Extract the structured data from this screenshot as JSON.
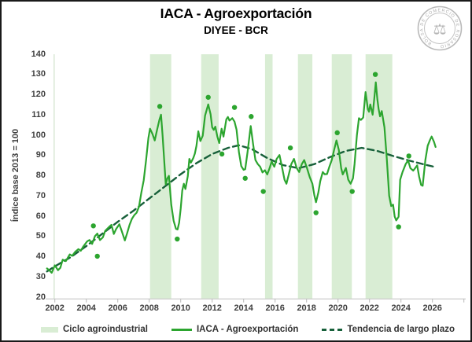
{
  "header": {
    "title": "IACA - Agroexportación",
    "subtitle": "DIYEE - BCR"
  },
  "logo": {
    "name": "Bolsa de Comercio de Rosario seal",
    "ring_text": "BOLSA DE COMERCIO DE ROSARIO",
    "emblem": "⚖"
  },
  "colors": {
    "iaca_line": "#2ca52f",
    "trend_line": "#17603a",
    "cycle_band": "#d9edd4",
    "axis": "#c9c9c9",
    "axis_text": "#3f3f3f",
    "logo_gray": "#b4b4b4"
  },
  "chart_data": {
    "type": "line",
    "title": "IACA - Agroexportación",
    "subtitle": "DIYEE - BCR",
    "xlabel": "",
    "ylabel": "Índice base 2013 = 100",
    "ylim": [
      20,
      140
    ],
    "yticks": [
      20,
      30,
      40,
      50,
      60,
      70,
      80,
      90,
      100,
      110,
      120,
      130,
      140
    ],
    "xticks": [
      2002,
      2004,
      2006,
      2008,
      2010,
      2012,
      2014,
      2016,
      2018,
      2020,
      2022,
      2024,
      2026
    ],
    "x_range": [
      2001.4,
      2028.1
    ],
    "grid": false,
    "legend_position": "bottom",
    "legend": [
      {
        "label": "Ciclo agroindustrial",
        "swatch": "band"
      },
      {
        "label": "IACA - Agroexportación",
        "swatch": "line"
      },
      {
        "label": "Tendencia de largo plazo",
        "swatch": "dashed"
      }
    ],
    "cycle_bands": [
      [
        2008.05,
        2009.4
      ],
      [
        2011.3,
        2012.41
      ],
      [
        2015.36,
        2015.84
      ],
      [
        2017.45,
        2018.37
      ],
      [
        2019.6,
        2020.88
      ],
      [
        2021.75,
        2023.45
      ]
    ],
    "iaca_series": [
      [
        2001.5,
        34.5
      ],
      [
        2001.65,
        33.5
      ],
      [
        2001.8,
        32.3
      ],
      [
        2002.0,
        36.0
      ],
      [
        2002.2,
        33.6
      ],
      [
        2002.35,
        34.8
      ],
      [
        2002.5,
        38.8
      ],
      [
        2002.7,
        38.1
      ],
      [
        2002.95,
        41.4
      ],
      [
        2003.1,
        40.7
      ],
      [
        2003.3,
        42.7
      ],
      [
        2003.5,
        44.0
      ],
      [
        2003.65,
        43.2
      ],
      [
        2003.8,
        45.2
      ],
      [
        2004.05,
        47.8
      ],
      [
        2004.2,
        48.5
      ],
      [
        2004.37,
        46.6
      ],
      [
        2004.55,
        50.4
      ],
      [
        2004.7,
        51.7
      ],
      [
        2004.87,
        48.5
      ],
      [
        2005.05,
        49.8
      ],
      [
        2005.2,
        53.0
      ],
      [
        2005.45,
        55.0
      ],
      [
        2005.6,
        56.0
      ],
      [
        2005.75,
        51.5
      ],
      [
        2005.9,
        54.0
      ],
      [
        2006.1,
        56.3
      ],
      [
        2006.25,
        53.0
      ],
      [
        2006.45,
        48.3
      ],
      [
        2006.6,
        52.0
      ],
      [
        2006.75,
        56.0
      ],
      [
        2006.9,
        59.0
      ],
      [
        2007.05,
        60.8
      ],
      [
        2007.2,
        62.0
      ],
      [
        2007.35,
        65.0
      ],
      [
        2007.5,
        72.0
      ],
      [
        2007.65,
        78.0
      ],
      [
        2007.8,
        88.0
      ],
      [
        2007.95,
        99.0
      ],
      [
        2008.05,
        103.5
      ],
      [
        2008.2,
        101.0
      ],
      [
        2008.35,
        97.7
      ],
      [
        2008.5,
        103.0
      ],
      [
        2008.65,
        108.0
      ],
      [
        2008.75,
        110.4
      ],
      [
        2008.85,
        100.0
      ],
      [
        2008.95,
        88.0
      ],
      [
        2009.05,
        76.0
      ],
      [
        2009.15,
        79.0
      ],
      [
        2009.25,
        80.2
      ],
      [
        2009.4,
        66.0
      ],
      [
        2009.55,
        58.0
      ],
      [
        2009.7,
        54.0
      ],
      [
        2009.8,
        53.7
      ],
      [
        2009.9,
        57.0
      ],
      [
        2010.0,
        64.0
      ],
      [
        2010.1,
        73.0
      ],
      [
        2010.2,
        76.3
      ],
      [
        2010.3,
        73.7
      ],
      [
        2010.45,
        80.0
      ],
      [
        2010.55,
        88.6
      ],
      [
        2010.65,
        86.7
      ],
      [
        2010.8,
        89.0
      ],
      [
        2010.9,
        91.2
      ],
      [
        2011.0,
        95.0
      ],
      [
        2011.12,
        102.2
      ],
      [
        2011.25,
        97.4
      ],
      [
        2011.4,
        100.0
      ],
      [
        2011.55,
        110.0
      ],
      [
        2011.75,
        115.5
      ],
      [
        2011.9,
        110.6
      ],
      [
        2012.0,
        104.2
      ],
      [
        2012.1,
        102.9
      ],
      [
        2012.2,
        104.5
      ],
      [
        2012.33,
        99.6
      ],
      [
        2012.45,
        96.4
      ],
      [
        2012.6,
        103.5
      ],
      [
        2012.72,
        99.6
      ],
      [
        2012.9,
        108.1
      ],
      [
        2013.0,
        109.3
      ],
      [
        2013.1,
        107.5
      ],
      [
        2013.28,
        108.7
      ],
      [
        2013.42,
        107.0
      ],
      [
        2013.55,
        103.0
      ],
      [
        2013.7,
        92.0
      ],
      [
        2013.85,
        85.0
      ],
      [
        2014.0,
        83.2
      ],
      [
        2014.1,
        83.5
      ],
      [
        2014.25,
        92.0
      ],
      [
        2014.45,
        104.8
      ],
      [
        2014.6,
        96.0
      ],
      [
        2014.75,
        88.0
      ],
      [
        2014.9,
        86.0
      ],
      [
        2015.05,
        84.7
      ],
      [
        2015.2,
        81.9
      ],
      [
        2015.35,
        83.0
      ],
      [
        2015.5,
        80.9
      ],
      [
        2015.65,
        84.0
      ],
      [
        2015.78,
        87.3
      ],
      [
        2015.95,
        84.7
      ],
      [
        2016.1,
        88.6
      ],
      [
        2016.28,
        90.5
      ],
      [
        2016.45,
        84.1
      ],
      [
        2016.6,
        78.3
      ],
      [
        2016.72,
        76.3
      ],
      [
        2016.87,
        80.9
      ],
      [
        2017.03,
        86.0
      ],
      [
        2017.2,
        88.6
      ],
      [
        2017.37,
        84.1
      ],
      [
        2017.53,
        82.1
      ],
      [
        2017.7,
        86.0
      ],
      [
        2017.85,
        88.0
      ],
      [
        2018.0,
        84.7
      ],
      [
        2018.2,
        79.6
      ],
      [
        2018.37,
        76.3
      ],
      [
        2018.5,
        70.4
      ],
      [
        2018.6,
        67.2
      ],
      [
        2018.75,
        72.0
      ],
      [
        2018.87,
        77.6
      ],
      [
        2019.03,
        82.1
      ],
      [
        2019.15,
        81.0
      ],
      [
        2019.3,
        81.1
      ],
      [
        2019.45,
        84.7
      ],
      [
        2019.6,
        88.0
      ],
      [
        2019.75,
        93.0
      ],
      [
        2019.9,
        97.7
      ],
      [
        2020.05,
        93.0
      ],
      [
        2020.2,
        84.0
      ],
      [
        2020.3,
        80.9
      ],
      [
        2020.5,
        84.1
      ],
      [
        2020.65,
        78.3
      ],
      [
        2020.8,
        76.3
      ],
      [
        2020.95,
        79.0
      ],
      [
        2021.05,
        86.0
      ],
      [
        2021.2,
        100.3
      ],
      [
        2021.33,
        108.7
      ],
      [
        2021.45,
        107.8
      ],
      [
        2021.6,
        109.0
      ],
      [
        2021.75,
        121.6
      ],
      [
        2021.9,
        113.0
      ],
      [
        2021.97,
        111.9
      ],
      [
        2022.05,
        115.5
      ],
      [
        2022.2,
        110.4
      ],
      [
        2022.3,
        118.0
      ],
      [
        2022.4,
        126.4
      ],
      [
        2022.5,
        118.0
      ],
      [
        2022.58,
        113.2
      ],
      [
        2022.67,
        109.6
      ],
      [
        2022.78,
        112.2
      ],
      [
        2022.95,
        104.2
      ],
      [
        2023.1,
        88.6
      ],
      [
        2023.25,
        70.4
      ],
      [
        2023.38,
        65.3
      ],
      [
        2023.5,
        66.0
      ],
      [
        2023.6,
        60.1
      ],
      [
        2023.7,
        58.2
      ],
      [
        2023.85,
        60.0
      ],
      [
        2023.95,
        78.3
      ],
      [
        2024.1,
        82.1
      ],
      [
        2024.3,
        86.0
      ],
      [
        2024.45,
        87.9
      ],
      [
        2024.6,
        84.0
      ],
      [
        2024.78,
        82.8
      ],
      [
        2024.9,
        84.0
      ],
      [
        2025.03,
        85.4
      ],
      [
        2025.15,
        80.0
      ],
      [
        2025.28,
        75.7
      ],
      [
        2025.38,
        75.3
      ],
      [
        2025.55,
        88.0
      ],
      [
        2025.7,
        95.1
      ],
      [
        2025.85,
        98.0
      ],
      [
        2025.95,
        99.6
      ],
      [
        2026.1,
        97.0
      ],
      [
        2026.2,
        94.5
      ]
    ],
    "trend_series": [
      [
        2001.5,
        33.0
      ],
      [
        2002,
        35.5
      ],
      [
        2003,
        40.0
      ],
      [
        2004,
        45.5
      ],
      [
        2005,
        51.5
      ],
      [
        2006,
        57.5
      ],
      [
        2007,
        63.0
      ],
      [
        2008,
        69.0
      ],
      [
        2009,
        75.0
      ],
      [
        2010,
        81.0
      ],
      [
        2011,
        86.5
      ],
      [
        2012,
        91.0
      ],
      [
        2013,
        94.0
      ],
      [
        2013.7,
        95.3
      ],
      [
        2014.5,
        93.5
      ],
      [
        2015.5,
        89.0
      ],
      [
        2016.5,
        85.5
      ],
      [
        2017.5,
        84.0
      ],
      [
        2018.5,
        86.0
      ],
      [
        2019.5,
        89.5
      ],
      [
        2020.5,
        92.5
      ],
      [
        2021.5,
        94.0
      ],
      [
        2022.5,
        92.5
      ],
      [
        2023.5,
        90.0
      ],
      [
        2024.5,
        87.8
      ],
      [
        2025.5,
        85.8
      ],
      [
        2026.1,
        84.7
      ]
    ],
    "marker_points": [
      [
        2004.45,
        55.5
      ],
      [
        2004.7,
        40.5
      ],
      [
        2008.67,
        114.5
      ],
      [
        2009.78,
        49.0
      ],
      [
        2011.75,
        119.0
      ],
      [
        2012.62,
        91.0
      ],
      [
        2013.42,
        114.0
      ],
      [
        2014.1,
        79.0
      ],
      [
        2014.48,
        109.5
      ],
      [
        2015.25,
        72.5
      ],
      [
        2016.97,
        94.0
      ],
      [
        2018.6,
        62.0
      ],
      [
        2019.95,
        101.5
      ],
      [
        2020.9,
        72.5
      ],
      [
        2022.37,
        130.3
      ],
      [
        2023.85,
        55.0
      ],
      [
        2024.5,
        90.0
      ]
    ]
  }
}
